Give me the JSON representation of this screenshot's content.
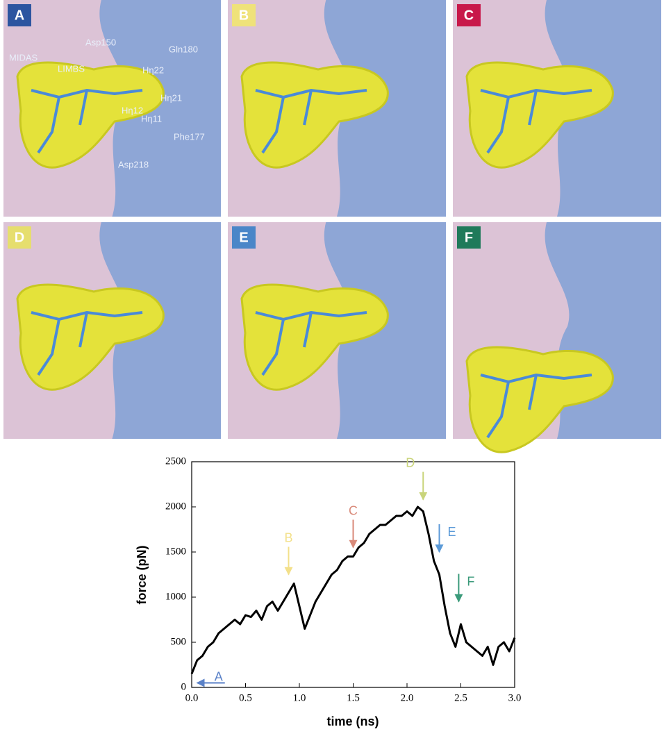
{
  "panels": [
    {
      "letter": "A",
      "labels": [
        "MIDAS",
        "LIMBS",
        "Asp150",
        "Gln180",
        "Phe177",
        "Asp218",
        "Hη22",
        "Hη21",
        "Hη11",
        "Hη12"
      ]
    },
    {
      "letter": "B",
      "labels": []
    },
    {
      "letter": "C",
      "labels": []
    },
    {
      "letter": "D",
      "labels": []
    },
    {
      "letter": "E",
      "labels": []
    },
    {
      "letter": "F",
      "labels": []
    }
  ],
  "chart_data": {
    "type": "line",
    "xlabel": "time (ns)",
    "ylabel": "force (pN)",
    "color": "#000000",
    "x": [
      0,
      0.05,
      0.1,
      0.15,
      0.2,
      0.25,
      0.3,
      0.35,
      0.4,
      0.45,
      0.5,
      0.55,
      0.6,
      0.65,
      0.7,
      0.75,
      0.8,
      0.85,
      0.9,
      0.95,
      1.0,
      1.05,
      1.1,
      1.15,
      1.2,
      1.25,
      1.3,
      1.35,
      1.4,
      1.45,
      1.5,
      1.55,
      1.6,
      1.65,
      1.7,
      1.75,
      1.8,
      1.85,
      1.9,
      1.95,
      2.0,
      2.05,
      2.1,
      2.15,
      2.2,
      2.25,
      2.3,
      2.35,
      2.4,
      2.45,
      2.5,
      2.55,
      2.6,
      2.65,
      2.7,
      2.75,
      2.8,
      2.85,
      2.9,
      2.95,
      3.0
    ],
    "values": [
      150,
      300,
      350,
      450,
      500,
      600,
      650,
      700,
      750,
      700,
      800,
      780,
      850,
      750,
      900,
      950,
      850,
      950,
      1050,
      1150,
      900,
      650,
      800,
      950,
      1050,
      1150,
      1250,
      1300,
      1400,
      1450,
      1450,
      1550,
      1600,
      1700,
      1750,
      1800,
      1800,
      1850,
      1900,
      1900,
      1950,
      1900,
      2000,
      1950,
      1700,
      1400,
      1250,
      900,
      600,
      450,
      700,
      500,
      450,
      400,
      350,
      450,
      250,
      450,
      500,
      400,
      550
    ],
    "xlim": [
      0,
      3.0
    ],
    "ylim": [
      0,
      2500
    ],
    "xticks": [
      {
        "value": 0,
        "label": "0.0"
      },
      0.5,
      {
        "value": 1,
        "label": "1.0"
      },
      1.5,
      {
        "value": 2,
        "label": "2.0"
      },
      2.5,
      {
        "value": 3,
        "label": "3.0"
      }
    ],
    "yticks": [
      0,
      500,
      1000,
      1500,
      2000,
      2500
    ],
    "annotations": [
      {
        "text": "A",
        "x": 0.05,
        "y": 50,
        "color": "#5b82c8"
      },
      {
        "text": "B",
        "x": 0.9,
        "y": 1250,
        "color": "#f3e08a"
      },
      {
        "text": "C",
        "x": 1.5,
        "y": 1550,
        "color": "#d98a7a"
      },
      {
        "text": "D",
        "x": 2.15,
        "y": 2080,
        "color": "#c9d47a"
      },
      {
        "text": "E",
        "x": 2.3,
        "y": 1500,
        "color": "#5b9ad8"
      },
      {
        "text": "F",
        "x": 2.48,
        "y": 950,
        "color": "#3a9a7a"
      }
    ]
  }
}
